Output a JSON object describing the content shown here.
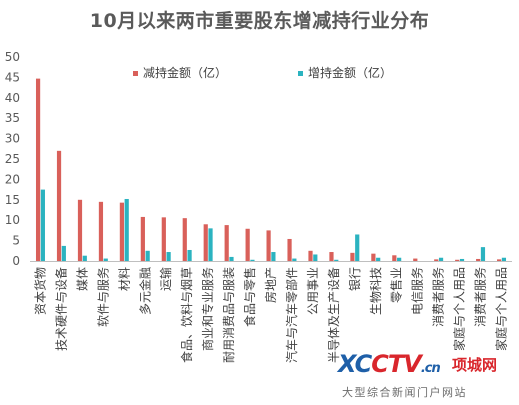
{
  "title": "10月以来两市重要股东增减持行业分布",
  "chart_data": {
    "type": "bar",
    "title": "10月以来两市重要股东增减持行业分布",
    "xlabel": "",
    "ylabel": "",
    "ylim": [
      0,
      50
    ],
    "yticks": [
      0,
      5,
      10,
      15,
      20,
      25,
      30,
      35,
      40,
      45,
      50
    ],
    "grid": false,
    "legend": "top-center",
    "categories": [
      "资本货物",
      "技术硬件与设备",
      "媒体",
      "软件与服务",
      "材料",
      "多元金融",
      "运输",
      "食品、饮料与烟草",
      "商业和专业服务",
      "耐用消费品与服装",
      "食品与零售",
      "房地产",
      "汽车与汽车零部件",
      "公用事业",
      "半导体及生产设备",
      "银行",
      "生物科技",
      "零售业",
      "电信服务",
      "消费者服务",
      "家庭与个人用品",
      "消费者服务",
      "家庭与个人用品"
    ],
    "series": [
      {
        "name": "减持金额（亿）",
        "color": "#d9605a",
        "values": [
          44.7,
          27.0,
          15.0,
          14.5,
          14.3,
          10.8,
          10.7,
          10.5,
          9.0,
          8.8,
          7.9,
          7.5,
          5.4,
          2.5,
          2.2,
          2.0,
          1.8,
          1.4,
          0.6,
          0.4,
          0.3,
          0.5,
          0.4
        ]
      },
      {
        "name": "增持金额（亿）",
        "color": "#2bb3c0",
        "values": [
          17.5,
          3.7,
          1.3,
          0.6,
          15.2,
          2.5,
          2.2,
          2.7,
          8.0,
          1.0,
          0.3,
          2.2,
          0.6,
          1.6,
          0.3,
          6.5,
          0.8,
          0.8,
          0.0,
          0.8,
          0.5,
          3.4,
          0.8
        ]
      }
    ]
  },
  "watermark": {
    "logo_a": "XC",
    "logo_b": "CTV",
    "logo_c": ".cn",
    "logo_cn": "项城网",
    "tagline": "大型综合新闻门户网站"
  }
}
